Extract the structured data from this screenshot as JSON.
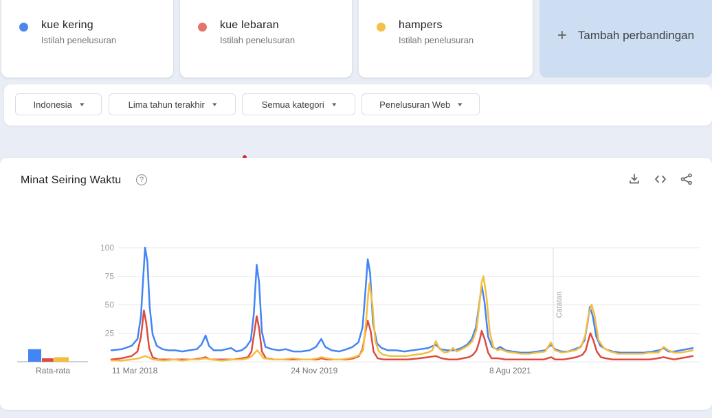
{
  "comparison_cards": [
    {
      "term": "kue kering",
      "subtitle": "Istilah penelusuran",
      "dot_color": "#4e86ec"
    },
    {
      "term": "kue lebaran",
      "subtitle": "Istilah penelusuran",
      "dot_color": "#e57368"
    },
    {
      "term": "hampers",
      "subtitle": "Istilah penelusuran",
      "dot_color": "#f2c14a"
    }
  ],
  "add_comparison": {
    "plus": "+",
    "label": "Tambah perbandingan"
  },
  "filters": [
    {
      "label": "Indonesia"
    },
    {
      "label": "Lima tahun terakhir"
    },
    {
      "label": "Semua kategori"
    },
    {
      "label": "Penelusuran Web"
    }
  ],
  "chart_header": {
    "title": "Minat Seiring Waktu",
    "help": "?",
    "icons": [
      "download-icon",
      "embed-code-icon",
      "share-icon"
    ]
  },
  "chart_data": {
    "type": "line",
    "title": "Minat Seiring Waktu",
    "grid": true,
    "legend_position": "top-cards",
    "value_axis": {
      "min": 0,
      "max": 100,
      "ticks": [
        100,
        75,
        50,
        25
      ]
    },
    "xticks": [
      {
        "label": "11 Mar 2018",
        "pos": 0.001,
        "anchor": "start"
      },
      {
        "label": "24 Nov 2019",
        "pos": 0.349,
        "anchor": "middle"
      },
      {
        "label": "8 Agu 2021",
        "pos": 0.686,
        "anchor": "middle"
      }
    ],
    "annotation": {
      "label": "Catatan",
      "pos": 0.76
    },
    "series": [
      {
        "name": "kue kering",
        "color": "#4285f4",
        "points": [
          [
            0,
            10
          ],
          [
            0.018,
            11
          ],
          [
            0.035,
            14
          ],
          [
            0.045,
            20
          ],
          [
            0.051,
            40
          ],
          [
            0.055,
            75
          ],
          [
            0.058,
            100
          ],
          [
            0.062,
            88
          ],
          [
            0.066,
            48
          ],
          [
            0.071,
            24
          ],
          [
            0.078,
            14
          ],
          [
            0.088,
            11
          ],
          [
            0.098,
            10
          ],
          [
            0.11,
            10
          ],
          [
            0.122,
            9
          ],
          [
            0.134,
            10
          ],
          [
            0.147,
            11
          ],
          [
            0.155,
            15
          ],
          [
            0.162,
            23
          ],
          [
            0.168,
            14
          ],
          [
            0.176,
            10
          ],
          [
            0.189,
            10
          ],
          [
            0.198,
            11
          ],
          [
            0.206,
            12
          ],
          [
            0.215,
            9
          ],
          [
            0.224,
            10
          ],
          [
            0.232,
            13
          ],
          [
            0.24,
            19
          ],
          [
            0.245,
            42
          ],
          [
            0.25,
            85
          ],
          [
            0.254,
            70
          ],
          [
            0.259,
            26
          ],
          [
            0.265,
            13
          ],
          [
            0.276,
            11
          ],
          [
            0.288,
            10
          ],
          [
            0.3,
            11
          ],
          [
            0.313,
            9
          ],
          [
            0.327,
            9
          ],
          [
            0.341,
            10
          ],
          [
            0.352,
            13
          ],
          [
            0.361,
            20
          ],
          [
            0.368,
            13
          ],
          [
            0.379,
            10
          ],
          [
            0.392,
            9
          ],
          [
            0.405,
            11
          ],
          [
            0.415,
            13
          ],
          [
            0.425,
            17
          ],
          [
            0.432,
            30
          ],
          [
            0.437,
            62
          ],
          [
            0.441,
            90
          ],
          [
            0.445,
            78
          ],
          [
            0.45,
            34
          ],
          [
            0.457,
            16
          ],
          [
            0.465,
            12
          ],
          [
            0.476,
            10
          ],
          [
            0.49,
            10
          ],
          [
            0.504,
            9
          ],
          [
            0.518,
            10
          ],
          [
            0.532,
            11
          ],
          [
            0.545,
            12
          ],
          [
            0.558,
            15
          ],
          [
            0.566,
            11
          ],
          [
            0.578,
            10
          ],
          [
            0.59,
            10
          ],
          [
            0.602,
            12
          ],
          [
            0.612,
            15
          ],
          [
            0.62,
            20
          ],
          [
            0.627,
            30
          ],
          [
            0.632,
            48
          ],
          [
            0.637,
            67
          ],
          [
            0.642,
            52
          ],
          [
            0.648,
            22
          ],
          [
            0.655,
            13
          ],
          [
            0.662,
            11
          ],
          [
            0.669,
            13
          ],
          [
            0.678,
            10
          ],
          [
            0.69,
            9
          ],
          [
            0.704,
            8
          ],
          [
            0.719,
            8
          ],
          [
            0.733,
            9
          ],
          [
            0.746,
            10
          ],
          [
            0.756,
            15
          ],
          [
            0.763,
            11
          ],
          [
            0.774,
            9
          ],
          [
            0.786,
            9
          ],
          [
            0.797,
            11
          ],
          [
            0.807,
            13
          ],
          [
            0.814,
            19
          ],
          [
            0.819,
            34
          ],
          [
            0.823,
            48
          ],
          [
            0.828,
            40
          ],
          [
            0.834,
            22
          ],
          [
            0.841,
            14
          ],
          [
            0.85,
            11
          ],
          [
            0.862,
            9
          ],
          [
            0.875,
            8
          ],
          [
            0.889,
            8
          ],
          [
            0.903,
            8
          ],
          [
            0.917,
            8
          ],
          [
            0.931,
            9
          ],
          [
            0.942,
            10
          ],
          [
            0.95,
            12
          ],
          [
            0.958,
            9
          ],
          [
            0.968,
            9
          ],
          [
            0.979,
            10
          ],
          [
            0.99,
            11
          ],
          [
            1,
            12
          ]
        ]
      },
      {
        "name": "kue lebaran",
        "color": "#dd4b3e",
        "points": [
          [
            0,
            2
          ],
          [
            0.018,
            3
          ],
          [
            0.035,
            5
          ],
          [
            0.045,
            9
          ],
          [
            0.051,
            22
          ],
          [
            0.056,
            45
          ],
          [
            0.06,
            34
          ],
          [
            0.065,
            12
          ],
          [
            0.071,
            4
          ],
          [
            0.08,
            2
          ],
          [
            0.098,
            2
          ],
          [
            0.12,
            2
          ],
          [
            0.14,
            2
          ],
          [
            0.155,
            3
          ],
          [
            0.162,
            4
          ],
          [
            0.17,
            2
          ],
          [
            0.19,
            2
          ],
          [
            0.21,
            2
          ],
          [
            0.225,
            3
          ],
          [
            0.235,
            4
          ],
          [
            0.241,
            9
          ],
          [
            0.246,
            26
          ],
          [
            0.25,
            40
          ],
          [
            0.254,
            30
          ],
          [
            0.259,
            9
          ],
          [
            0.266,
            3
          ],
          [
            0.28,
            2
          ],
          [
            0.3,
            2
          ],
          [
            0.32,
            2
          ],
          [
            0.34,
            2
          ],
          [
            0.355,
            2
          ],
          [
            0.361,
            3
          ],
          [
            0.37,
            2
          ],
          [
            0.39,
            2
          ],
          [
            0.405,
            2
          ],
          [
            0.417,
            3
          ],
          [
            0.426,
            5
          ],
          [
            0.432,
            11
          ],
          [
            0.437,
            26
          ],
          [
            0.441,
            36
          ],
          [
            0.446,
            27
          ],
          [
            0.451,
            9
          ],
          [
            0.458,
            3
          ],
          [
            0.468,
            2
          ],
          [
            0.49,
            2
          ],
          [
            0.51,
            2
          ],
          [
            0.53,
            3
          ],
          [
            0.545,
            4
          ],
          [
            0.558,
            5
          ],
          [
            0.568,
            3
          ],
          [
            0.58,
            2
          ],
          [
            0.595,
            2
          ],
          [
            0.605,
            3
          ],
          [
            0.615,
            4
          ],
          [
            0.622,
            6
          ],
          [
            0.628,
            10
          ],
          [
            0.633,
            18
          ],
          [
            0.637,
            27
          ],
          [
            0.642,
            20
          ],
          [
            0.648,
            8
          ],
          [
            0.654,
            3
          ],
          [
            0.665,
            3
          ],
          [
            0.678,
            2
          ],
          [
            0.695,
            2
          ],
          [
            0.712,
            2
          ],
          [
            0.728,
            2
          ],
          [
            0.744,
            2
          ],
          [
            0.756,
            4
          ],
          [
            0.764,
            2
          ],
          [
            0.778,
            2
          ],
          [
            0.79,
            3
          ],
          [
            0.8,
            4
          ],
          [
            0.81,
            6
          ],
          [
            0.816,
            10
          ],
          [
            0.82,
            18
          ],
          [
            0.824,
            25
          ],
          [
            0.829,
            19
          ],
          [
            0.835,
            9
          ],
          [
            0.842,
            4
          ],
          [
            0.85,
            3
          ],
          [
            0.862,
            2
          ],
          [
            0.878,
            2
          ],
          [
            0.894,
            2
          ],
          [
            0.91,
            2
          ],
          [
            0.926,
            2
          ],
          [
            0.94,
            3
          ],
          [
            0.95,
            4
          ],
          [
            0.958,
            3
          ],
          [
            0.968,
            2
          ],
          [
            0.979,
            3
          ],
          [
            0.99,
            4
          ],
          [
            1,
            5
          ]
        ]
      },
      {
        "name": "hampers",
        "color": "#f5bd3c",
        "points": [
          [
            0,
            1
          ],
          [
            0.018,
            1
          ],
          [
            0.035,
            2
          ],
          [
            0.047,
            3
          ],
          [
            0.053,
            4
          ],
          [
            0.058,
            5
          ],
          [
            0.063,
            4
          ],
          [
            0.072,
            2
          ],
          [
            0.09,
            1
          ],
          [
            0.108,
            2
          ],
          [
            0.122,
            1
          ],
          [
            0.136,
            2
          ],
          [
            0.15,
            2
          ],
          [
            0.162,
            3
          ],
          [
            0.17,
            2
          ],
          [
            0.19,
            1
          ],
          [
            0.21,
            2
          ],
          [
            0.225,
            2
          ],
          [
            0.235,
            3
          ],
          [
            0.242,
            5
          ],
          [
            0.247,
            8
          ],
          [
            0.251,
            10
          ],
          [
            0.256,
            7
          ],
          [
            0.262,
            3
          ],
          [
            0.276,
            2
          ],
          [
            0.296,
            2
          ],
          [
            0.312,
            3
          ],
          [
            0.328,
            2
          ],
          [
            0.344,
            2
          ],
          [
            0.355,
            3
          ],
          [
            0.361,
            4
          ],
          [
            0.37,
            3
          ],
          [
            0.383,
            2
          ],
          [
            0.396,
            2
          ],
          [
            0.408,
            3
          ],
          [
            0.418,
            4
          ],
          [
            0.427,
            6
          ],
          [
            0.433,
            10
          ],
          [
            0.438,
            34
          ],
          [
            0.442,
            60
          ],
          [
            0.444,
            69
          ],
          [
            0.449,
            50
          ],
          [
            0.454,
            18
          ],
          [
            0.46,
            9
          ],
          [
            0.468,
            6
          ],
          [
            0.48,
            5
          ],
          [
            0.494,
            5
          ],
          [
            0.508,
            5
          ],
          [
            0.522,
            6
          ],
          [
            0.535,
            7
          ],
          [
            0.544,
            8
          ],
          [
            0.552,
            10
          ],
          [
            0.558,
            18
          ],
          [
            0.565,
            11
          ],
          [
            0.573,
            8
          ],
          [
            0.581,
            9
          ],
          [
            0.588,
            12
          ],
          [
            0.594,
            9
          ],
          [
            0.603,
            11
          ],
          [
            0.613,
            14
          ],
          [
            0.621,
            18
          ],
          [
            0.628,
            28
          ],
          [
            0.633,
            50
          ],
          [
            0.637,
            70
          ],
          [
            0.64,
            75
          ],
          [
            0.645,
            58
          ],
          [
            0.651,
            26
          ],
          [
            0.657,
            13
          ],
          [
            0.664,
            10
          ],
          [
            0.67,
            11
          ],
          [
            0.679,
            9
          ],
          [
            0.69,
            8
          ],
          [
            0.704,
            7
          ],
          [
            0.719,
            7
          ],
          [
            0.733,
            8
          ],
          [
            0.746,
            9
          ],
          [
            0.756,
            17
          ],
          [
            0.763,
            10
          ],
          [
            0.775,
            8
          ],
          [
            0.787,
            9
          ],
          [
            0.798,
            10
          ],
          [
            0.808,
            13
          ],
          [
            0.815,
            23
          ],
          [
            0.821,
            42
          ],
          [
            0.826,
            50
          ],
          [
            0.831,
            41
          ],
          [
            0.838,
            19
          ],
          [
            0.847,
            12
          ],
          [
            0.858,
            9
          ],
          [
            0.872,
            7
          ],
          [
            0.886,
            7
          ],
          [
            0.9,
            7
          ],
          [
            0.914,
            7
          ],
          [
            0.928,
            8
          ],
          [
            0.941,
            8
          ],
          [
            0.95,
            13
          ],
          [
            0.958,
            10
          ],
          [
            0.968,
            8
          ],
          [
            0.979,
            8
          ],
          [
            0.99,
            9
          ],
          [
            1,
            10
          ]
        ]
      }
    ],
    "averages": {
      "label": "Rata-rata",
      "bars": [
        {
          "name": "kue kering",
          "value": 11,
          "color": "#4285f4"
        },
        {
          "name": "kue lebaran",
          "value": 3,
          "color": "#dd4b3e"
        },
        {
          "name": "hampers",
          "value": 4,
          "color": "#f5bd3c"
        }
      ]
    }
  }
}
